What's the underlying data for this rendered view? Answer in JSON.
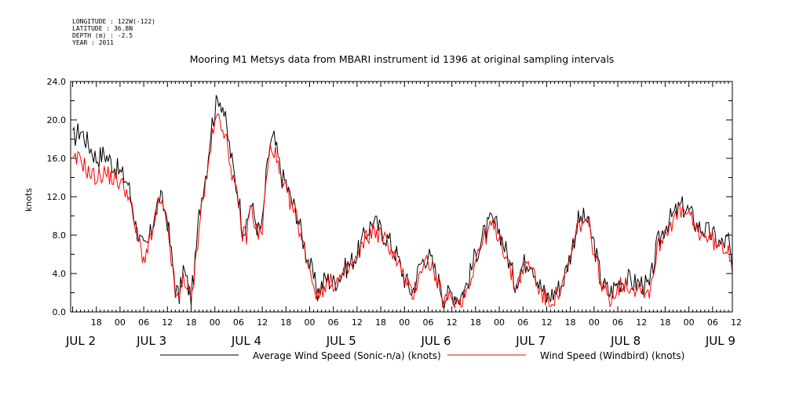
{
  "meta": {
    "lines": [
      "LONGITUDE : 122W(-122)",
      "LATITUDE : 36.8N",
      "DEPTH (m) : -2.5",
      "YEAR : 2011"
    ]
  },
  "colors": {
    "sonic": "#000000",
    "windbird": "#ff0000",
    "axis": "#000000"
  },
  "chart_data": {
    "type": "line",
    "title": "Mooring M1 Metsys data from MBARI instrument id 1396 at original sampling intervals",
    "xlabel": "",
    "ylabel": "knots",
    "ylim": [
      0,
      24
    ],
    "xlim": [
      11.5,
      179
    ],
    "x_unit": "hours since JUL 2 00:00, 2011",
    "yticks": [
      "0.0",
      "4.0",
      "8.0",
      "12.0",
      "16.0",
      "20.0",
      "24.0"
    ],
    "hour_ticks": [
      {
        "h": 18,
        "label": "18"
      },
      {
        "h": 24,
        "label": "00"
      },
      {
        "h": 30,
        "label": "06"
      },
      {
        "h": 36,
        "label": "12"
      },
      {
        "h": 42,
        "label": "18"
      },
      {
        "h": 48,
        "label": "00"
      },
      {
        "h": 54,
        "label": "06"
      },
      {
        "h": 60,
        "label": "12"
      },
      {
        "h": 66,
        "label": "18"
      },
      {
        "h": 72,
        "label": "00"
      },
      {
        "h": 78,
        "label": "06"
      },
      {
        "h": 84,
        "label": "12"
      },
      {
        "h": 90,
        "label": "18"
      },
      {
        "h": 96,
        "label": "00"
      },
      {
        "h": 102,
        "label": "06"
      },
      {
        "h": 108,
        "label": "12"
      },
      {
        "h": 114,
        "label": "18"
      },
      {
        "h": 120,
        "label": "00"
      },
      {
        "h": 126,
        "label": "06"
      },
      {
        "h": 132,
        "label": "12"
      },
      {
        "h": 138,
        "label": "18"
      },
      {
        "h": 144,
        "label": "00"
      },
      {
        "h": 150,
        "label": "06"
      },
      {
        "h": 156,
        "label": "12"
      },
      {
        "h": 162,
        "label": "18"
      },
      {
        "h": 168,
        "label": "00"
      },
      {
        "h": 174,
        "label": "06"
      },
      {
        "h": 180,
        "label": "12"
      }
    ],
    "day_labels": [
      {
        "h": 11.5,
        "label": "JUL  2"
      },
      {
        "h": 32,
        "label": "JUL  3"
      },
      {
        "h": 56,
        "label": "JUL  4"
      },
      {
        "h": 80,
        "label": "JUL  5"
      },
      {
        "h": 104,
        "label": "JUL  6"
      },
      {
        "h": 128,
        "label": "JUL  7"
      },
      {
        "h": 152,
        "label": "JUL  8"
      },
      {
        "h": 176,
        "label": "JUL  9"
      }
    ],
    "legend_position": "bottom",
    "series": [
      {
        "name": "Average Wind Speed (Sonic-n/a) (knots)",
        "color": "#000000",
        "x": [
          12,
          14,
          16,
          18,
          20,
          22,
          24,
          26,
          28,
          29,
          30,
          31,
          32,
          33,
          34,
          35,
          36,
          37,
          38,
          39,
          40,
          41,
          42,
          43,
          44,
          45,
          46,
          47,
          48,
          49,
          50,
          51,
          52,
          53,
          54,
          55,
          56,
          57,
          58,
          59,
          60,
          61,
          62,
          63,
          64,
          65,
          66,
          67,
          68,
          69,
          70,
          72,
          74,
          76,
          78,
          80,
          82,
          84,
          86,
          88,
          90,
          92,
          94,
          96,
          98,
          100,
          102,
          104,
          106,
          108,
          110,
          112,
          114,
          116,
          118,
          120,
          122,
          124,
          126,
          128,
          130,
          132,
          134,
          136,
          138,
          140,
          142,
          144,
          146,
          148,
          150,
          152,
          154,
          156,
          158,
          160,
          162,
          164,
          166,
          168,
          170,
          172,
          174,
          176,
          178,
          179
        ],
        "values": [
          18.0,
          19.0,
          17.5,
          16.0,
          16.5,
          15.5,
          14.5,
          13.5,
          9.0,
          7.5,
          6.5,
          7.0,
          8.5,
          10.5,
          12.0,
          11.0,
          9.5,
          6.0,
          2.5,
          1.5,
          4.5,
          3.0,
          1.5,
          5.0,
          10.0,
          13.0,
          15.0,
          19.0,
          21.0,
          22.5,
          21.5,
          19.0,
          16.5,
          14.0,
          12.0,
          9.0,
          8.5,
          11.5,
          10.0,
          8.5,
          9.0,
          14.0,
          17.5,
          18.0,
          16.0,
          14.0,
          13.5,
          12.0,
          11.0,
          10.0,
          8.0,
          5.0,
          2.0,
          3.5,
          3.0,
          4.0,
          5.0,
          6.0,
          8.0,
          9.5,
          8.5,
          7.5,
          6.0,
          3.5,
          2.0,
          5.0,
          6.0,
          4.0,
          1.5,
          2.0,
          1.5,
          3.0,
          6.0,
          8.0,
          9.5,
          8.5,
          6.0,
          3.0,
          5.0,
          5.5,
          3.0,
          1.5,
          2.0,
          3.0,
          6.0,
          9.5,
          9.8,
          7.0,
          3.0,
          2.0,
          3.0,
          3.5,
          3.0,
          3.0,
          2.5,
          7.0,
          9.0,
          10.0,
          11.0,
          10.5,
          9.0,
          8.5,
          8.0,
          7.0,
          7.5,
          4.5
        ]
      },
      {
        "name": "Wind Speed (Windbird) (knots)",
        "color": "#ff0000",
        "x": [
          12,
          14,
          16,
          18,
          20,
          22,
          24,
          26,
          28,
          29,
          30,
          31,
          32,
          33,
          34,
          35,
          36,
          37,
          38,
          39,
          40,
          41,
          42,
          43,
          44,
          45,
          46,
          47,
          48,
          49,
          50,
          51,
          52,
          53,
          54,
          55,
          56,
          57,
          58,
          59,
          60,
          61,
          62,
          63,
          64,
          65,
          66,
          67,
          68,
          69,
          70,
          72,
          74,
          76,
          78,
          80,
          82,
          84,
          86,
          88,
          90,
          92,
          94,
          96,
          98,
          100,
          102,
          104,
          106,
          108,
          110,
          112,
          114,
          116,
          118,
          120,
          122,
          124,
          126,
          128,
          130,
          132,
          134,
          136,
          138,
          140,
          142,
          144,
          146,
          148,
          150,
          152,
          154,
          156,
          158,
          160,
          162,
          164,
          166,
          168,
          170,
          172,
          174,
          176,
          178,
          179
        ],
        "values": [
          15.5,
          16.0,
          14.5,
          14.0,
          14.5,
          14.0,
          13.5,
          12.5,
          8.5,
          7.0,
          5.5,
          6.5,
          8.0,
          10.0,
          11.5,
          10.5,
          9.0,
          5.5,
          2.0,
          1.0,
          4.0,
          2.5,
          1.0,
          4.5,
          9.0,
          12.0,
          14.0,
          17.5,
          19.5,
          20.5,
          19.5,
          17.5,
          15.5,
          13.0,
          11.0,
          8.0,
          8.0,
          11.0,
          9.5,
          8.0,
          8.5,
          13.5,
          17.0,
          17.0,
          15.0,
          13.0,
          12.5,
          11.5,
          10.5,
          9.5,
          7.5,
          4.5,
          1.5,
          3.0,
          3.0,
          3.5,
          4.5,
          5.5,
          7.5,
          8.5,
          8.0,
          7.0,
          5.5,
          3.5,
          1.5,
          4.5,
          5.5,
          3.5,
          1.0,
          1.5,
          1.0,
          2.5,
          5.5,
          7.5,
          9.0,
          8.0,
          5.5,
          2.5,
          4.5,
          5.0,
          2.5,
          1.0,
          1.5,
          2.5,
          5.5,
          9.0,
          9.5,
          6.5,
          2.5,
          1.5,
          2.5,
          3.0,
          2.5,
          2.5,
          2.0,
          6.5,
          8.5,
          9.5,
          10.5,
          10.0,
          8.5,
          8.0,
          7.5,
          6.5,
          7.0,
          4.0
        ]
      }
    ]
  }
}
